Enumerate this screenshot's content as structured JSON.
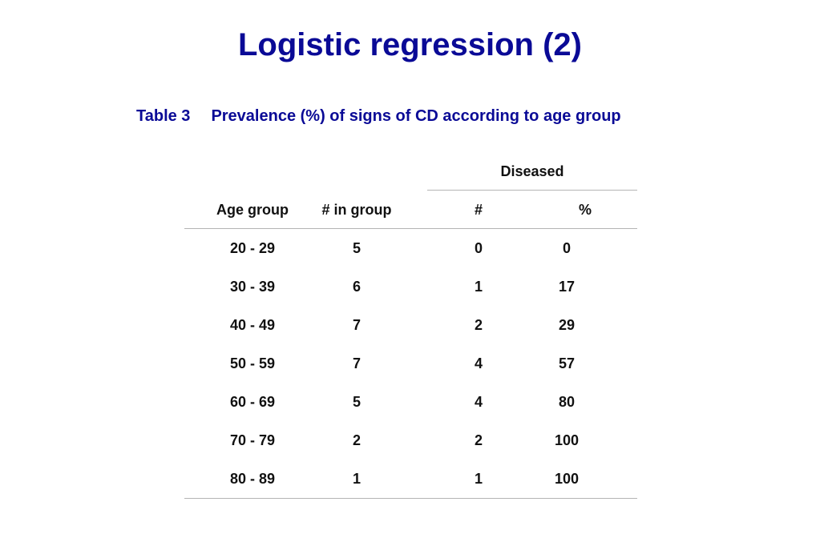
{
  "title": "Logistic regression (2)",
  "caption": {
    "number": "Table 3",
    "text": "Prevalence (%) of signs of CD according to age group"
  },
  "table": {
    "group_header": "Diseased",
    "headers": {
      "age_group": "Age group",
      "in_group": "# in group",
      "count": "#",
      "percent": "%"
    },
    "rows": [
      {
        "age": "20 - 29",
        "n": "5",
        "count": "0",
        "pct": "0"
      },
      {
        "age": "30 - 39",
        "n": "6",
        "count": "1",
        "pct": "17"
      },
      {
        "age": "40 - 49",
        "n": "7",
        "count": "2",
        "pct": "29"
      },
      {
        "age": "50 - 59",
        "n": "7",
        "count": "4",
        "pct": "57"
      },
      {
        "age": "60 - 69",
        "n": "5",
        "count": "4",
        "pct": "80"
      },
      {
        "age": "70 - 79",
        "n": "2",
        "count": "2",
        "pct": "100"
      },
      {
        "age": "80 - 89",
        "n": "1",
        "count": "1",
        "pct": "100"
      }
    ]
  },
  "colors": {
    "title": "#0a0a96",
    "rule": "#b4b4b4",
    "text": "#111111"
  }
}
